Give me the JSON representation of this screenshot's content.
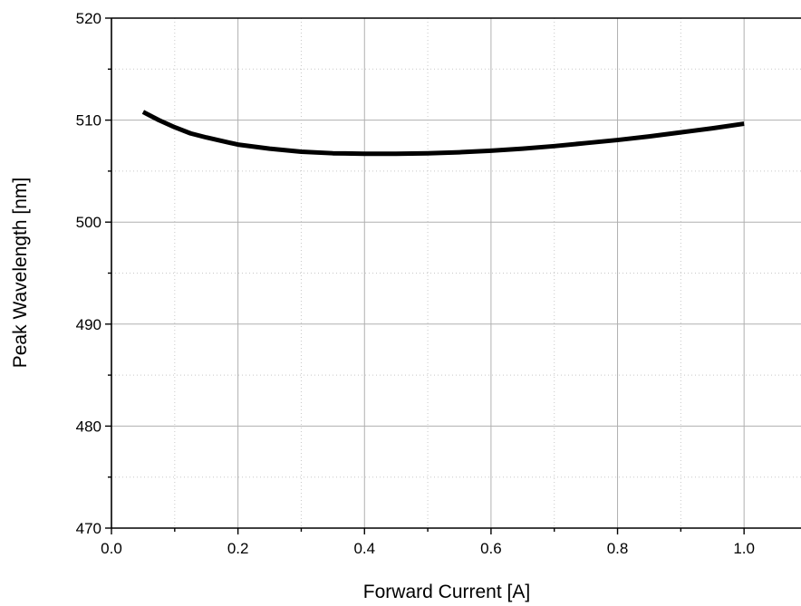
{
  "chart_data": {
    "type": "line",
    "xlabel": "Forward Current [A]",
    "ylabel": "Peak Wavelength [nm]",
    "xlim": [
      0,
      1.09
    ],
    "ylim": [
      470,
      520
    ],
    "x_ticks": [
      0.0,
      0.2,
      0.4,
      0.6,
      0.8,
      1.0
    ],
    "x_tick_labels": [
      "0.0",
      "0.2",
      "0.4",
      "0.6",
      "0.8",
      "1.0"
    ],
    "y_ticks": [
      470,
      480,
      490,
      500,
      510,
      520
    ],
    "y_tick_labels": [
      "470",
      "480",
      "490",
      "500",
      "510",
      "520"
    ],
    "x_minor_ticks": [
      0.1,
      0.3,
      0.5,
      0.7,
      0.9
    ],
    "y_minor_ticks": [
      475,
      485,
      495,
      505,
      515
    ],
    "grid": true,
    "legend": "none",
    "series": [
      {
        "color": "#000000",
        "x": [
          0.05,
          0.075,
          0.1,
          0.125,
          0.15,
          0.2,
          0.25,
          0.3,
          0.35,
          0.4,
          0.45,
          0.5,
          0.55,
          0.6,
          0.65,
          0.7,
          0.75,
          0.8,
          0.85,
          0.9,
          0.95,
          1.0
        ],
        "y": [
          510.8,
          510.0,
          509.3,
          508.7,
          508.3,
          507.6,
          507.2,
          506.9,
          506.75,
          506.7,
          506.7,
          506.75,
          506.85,
          507.0,
          507.2,
          507.45,
          507.75,
          508.05,
          508.4,
          508.8,
          509.2,
          509.65
        ]
      }
    ]
  }
}
